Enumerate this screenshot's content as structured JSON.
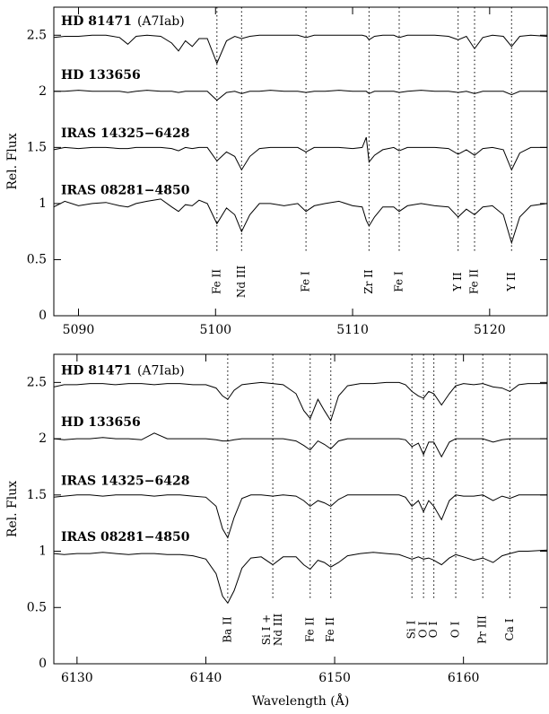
{
  "chart_data": [
    {
      "type": "line",
      "ylabel": "Rel. Flux",
      "xlim": [
        5088.2,
        5124.2
      ],
      "ylim": [
        0,
        2.75
      ],
      "xticks": [
        5090,
        5100,
        5110,
        5120
      ],
      "yticks": [
        0,
        0.5,
        1,
        1.5,
        2,
        2.5
      ],
      "x": [
        5088.2,
        5089,
        5090,
        5091,
        5092,
        5093,
        5093.6,
        5094.2,
        5095,
        5096,
        5096.8,
        5097.3,
        5097.8,
        5098.3,
        5098.8,
        5099.4,
        5100.1,
        5100.8,
        5101.4,
        5101.9,
        5102.5,
        5103.2,
        5104,
        5105,
        5106,
        5106.6,
        5107.2,
        5108,
        5109,
        5110,
        5110.7,
        5111.0,
        5111.2,
        5111.6,
        5112.2,
        5113,
        5113.4,
        5114,
        5115,
        5116,
        5117,
        5117.7,
        5118.3,
        5118.9,
        5119.5,
        5120.2,
        5121,
        5121.6,
        5122.2,
        5123,
        5124.2
      ],
      "series": [
        {
          "name": "HD 81471",
          "note": "(A7Iab)",
          "color": "#000000",
          "values": [
            2.48,
            2.49,
            2.49,
            2.5,
            2.5,
            2.48,
            2.42,
            2.49,
            2.5,
            2.49,
            2.43,
            2.36,
            2.45,
            2.4,
            2.47,
            2.47,
            2.25,
            2.45,
            2.49,
            2.47,
            2.49,
            2.5,
            2.5,
            2.5,
            2.5,
            2.48,
            2.5,
            2.5,
            2.5,
            2.5,
            2.5,
            2.49,
            2.46,
            2.49,
            2.5,
            2.5,
            2.48,
            2.5,
            2.5,
            2.5,
            2.49,
            2.46,
            2.49,
            2.38,
            2.48,
            2.5,
            2.49,
            2.4,
            2.49,
            2.5,
            2.49
          ]
        },
        {
          "name": "HD 133656",
          "color": "#000000",
          "values": [
            2.0,
            2.0,
            2.01,
            2.0,
            2.0,
            2.0,
            1.99,
            2.0,
            2.01,
            2.0,
            2.0,
            1.99,
            2.0,
            2.0,
            2.0,
            2.0,
            1.92,
            1.99,
            2.0,
            1.98,
            2.0,
            2.0,
            2.01,
            2.0,
            2.0,
            1.99,
            2.0,
            2.0,
            2.01,
            2.0,
            2.0,
            2.0,
            1.98,
            2.0,
            2.0,
            2.0,
            1.99,
            2.0,
            2.01,
            2.0,
            2.0,
            1.99,
            2.0,
            1.98,
            2.0,
            2.0,
            2.0,
            1.97,
            2.0,
            2.0,
            2.0
          ]
        },
        {
          "name": "IRAS 14325−6428",
          "color": "#000000",
          "values": [
            1.48,
            1.5,
            1.49,
            1.5,
            1.5,
            1.49,
            1.49,
            1.5,
            1.5,
            1.5,
            1.49,
            1.47,
            1.5,
            1.49,
            1.5,
            1.5,
            1.38,
            1.46,
            1.42,
            1.3,
            1.42,
            1.49,
            1.5,
            1.5,
            1.5,
            1.46,
            1.5,
            1.5,
            1.5,
            1.49,
            1.5,
            1.59,
            1.37,
            1.43,
            1.48,
            1.5,
            1.47,
            1.5,
            1.5,
            1.5,
            1.49,
            1.44,
            1.48,
            1.43,
            1.49,
            1.5,
            1.48,
            1.3,
            1.45,
            1.5,
            1.5
          ]
        },
        {
          "name": "IRAS 08281−4850",
          "color": "#000000",
          "values": [
            0.97,
            1.02,
            0.98,
            1.0,
            1.01,
            0.98,
            0.97,
            1.0,
            1.02,
            1.04,
            0.97,
            0.93,
            0.99,
            0.98,
            1.03,
            1.0,
            0.82,
            0.96,
            0.9,
            0.75,
            0.9,
            1.0,
            1.0,
            0.98,
            1.0,
            0.93,
            0.98,
            1.0,
            1.02,
            0.98,
            0.97,
            0.85,
            0.8,
            0.88,
            0.97,
            0.97,
            0.93,
            0.98,
            1.0,
            0.98,
            0.97,
            0.88,
            0.95,
            0.9,
            0.97,
            0.98,
            0.9,
            0.65,
            0.88,
            0.98,
            1.0
          ]
        }
      ],
      "lines": [
        {
          "x": 5100.1,
          "label": [
            "Fe II"
          ]
        },
        {
          "x": 5101.9,
          "label": [
            "Nd III"
          ]
        },
        {
          "x": 5106.6,
          "label": [
            "Fe I"
          ]
        },
        {
          "x": 5111.2,
          "label": [
            "Zr II"
          ]
        },
        {
          "x": 5113.4,
          "label": [
            "Fe I"
          ]
        },
        {
          "x": 5117.7,
          "label": [
            "Y II"
          ]
        },
        {
          "x": 5118.9,
          "label": [
            "Fe II"
          ]
        },
        {
          "x": 5121.6,
          "label": [
            "Y II"
          ]
        }
      ]
    },
    {
      "type": "line",
      "ylabel": "Rel. Flux",
      "xlabel": "Wavelength (Å)",
      "xlim": [
        6128.2,
        6166.5
      ],
      "ylim": [
        0,
        2.75
      ],
      "xticks": [
        6130,
        6140,
        6150,
        6160
      ],
      "yticks": [
        0,
        0.5,
        1,
        1.5,
        2,
        2.5
      ],
      "x": [
        6128.2,
        6129,
        6130,
        6131,
        6132,
        6133,
        6134,
        6135,
        6136,
        6137,
        6138,
        6139,
        6140,
        6140.8,
        6141.3,
        6141.7,
        6142.2,
        6142.8,
        6143.5,
        6144.3,
        6145.2,
        6146,
        6147,
        6147.6,
        6148.1,
        6148.7,
        6149.2,
        6149.7,
        6150.3,
        6151,
        6152,
        6153,
        6154,
        6155,
        6155.5,
        6156.0,
        6156.5,
        6156.9,
        6157.3,
        6157.7,
        6158.3,
        6158.9,
        6159.4,
        6160,
        6160.8,
        6161.5,
        6162.3,
        6163,
        6163.6,
        6164.3,
        6165,
        6166.5
      ],
      "series": [
        {
          "name": "HD 81471",
          "note": "(A7Iab)",
          "color": "#000000",
          "values": [
            2.46,
            2.48,
            2.48,
            2.49,
            2.49,
            2.48,
            2.49,
            2.49,
            2.48,
            2.49,
            2.49,
            2.48,
            2.48,
            2.45,
            2.38,
            2.35,
            2.43,
            2.48,
            2.49,
            2.5,
            2.49,
            2.48,
            2.4,
            2.25,
            2.18,
            2.35,
            2.25,
            2.16,
            2.38,
            2.47,
            2.49,
            2.49,
            2.5,
            2.5,
            2.48,
            2.42,
            2.38,
            2.36,
            2.42,
            2.4,
            2.3,
            2.4,
            2.47,
            2.49,
            2.48,
            2.49,
            2.46,
            2.45,
            2.42,
            2.48,
            2.49,
            2.49
          ]
        },
        {
          "name": "HD 133656",
          "color": "#000000",
          "values": [
            2.0,
            1.99,
            2.0,
            2.0,
            2.01,
            2.0,
            2.0,
            1.99,
            2.05,
            2.0,
            2.0,
            2.0,
            2.0,
            1.99,
            1.98,
            1.98,
            1.99,
            2.0,
            2.0,
            2.0,
            2.0,
            2.0,
            1.98,
            1.94,
            1.9,
            1.98,
            1.95,
            1.91,
            1.98,
            2.0,
            2.0,
            2.0,
            2.0,
            2.0,
            1.99,
            1.93,
            1.96,
            1.86,
            1.97,
            1.97,
            1.84,
            1.97,
            2.0,
            2.0,
            2.0,
            2.0,
            1.97,
            1.99,
            2.0,
            2.0,
            2.0,
            2.0
          ]
        },
        {
          "name": "IRAS 14325−6428",
          "color": "#000000",
          "values": [
            1.48,
            1.49,
            1.5,
            1.5,
            1.49,
            1.5,
            1.5,
            1.5,
            1.49,
            1.5,
            1.5,
            1.49,
            1.48,
            1.4,
            1.2,
            1.12,
            1.3,
            1.47,
            1.5,
            1.5,
            1.49,
            1.5,
            1.49,
            1.45,
            1.4,
            1.45,
            1.43,
            1.4,
            1.46,
            1.5,
            1.5,
            1.5,
            1.5,
            1.5,
            1.48,
            1.4,
            1.45,
            1.35,
            1.45,
            1.4,
            1.28,
            1.45,
            1.5,
            1.49,
            1.49,
            1.5,
            1.45,
            1.49,
            1.47,
            1.5,
            1.5,
            1.5
          ]
        },
        {
          "name": "IRAS 08281−4850",
          "color": "#000000",
          "values": [
            0.98,
            0.97,
            0.98,
            0.98,
            0.99,
            0.98,
            0.97,
            0.98,
            0.98,
            0.97,
            0.97,
            0.96,
            0.93,
            0.8,
            0.6,
            0.54,
            0.65,
            0.85,
            0.94,
            0.95,
            0.88,
            0.95,
            0.95,
            0.88,
            0.84,
            0.92,
            0.9,
            0.86,
            0.9,
            0.96,
            0.98,
            0.99,
            0.98,
            0.97,
            0.95,
            0.93,
            0.95,
            0.93,
            0.94,
            0.92,
            0.88,
            0.94,
            0.97,
            0.95,
            0.92,
            0.94,
            0.9,
            0.96,
            0.98,
            1.0,
            1.0,
            1.01
          ]
        }
      ],
      "lines": [
        {
          "x": 6141.7,
          "label": [
            "Ba II"
          ]
        },
        {
          "x": 6145.2,
          "label": [
            "Si I +",
            "Nd III"
          ]
        },
        {
          "x": 6148.1,
          "label": [
            "Fe II"
          ]
        },
        {
          "x": 6149.7,
          "label": [
            "Fe II"
          ]
        },
        {
          "x": 6156.0,
          "label": [
            "Si I"
          ]
        },
        {
          "x": 6156.9,
          "label": [
            "O I"
          ]
        },
        {
          "x": 6157.7,
          "label": [
            "O I"
          ]
        },
        {
          "x": 6159.4,
          "label": [
            "O I"
          ]
        },
        {
          "x": 6161.5,
          "label": [
            "Pr III"
          ]
        },
        {
          "x": 6163.6,
          "label": [
            "Ca I"
          ]
        }
      ]
    }
  ]
}
